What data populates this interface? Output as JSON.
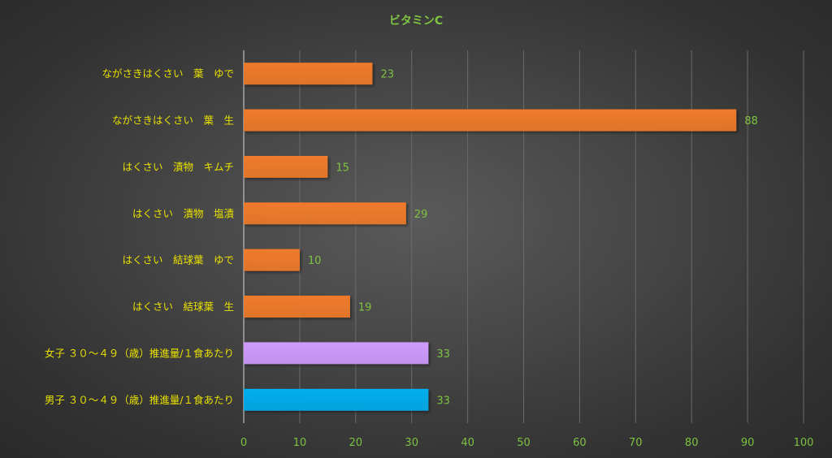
{
  "chart_data": {
    "type": "bar",
    "orientation": "horizontal",
    "title": "ビタミンC",
    "categories": [
      "ながさきはくさい　葉　ゆで",
      "ながさきはくさい　葉　生",
      "はくさい　漬物　キムチ",
      "はくさい　漬物　塩漬",
      "はくさい　結球葉　ゆで",
      "はくさい　結球葉　生",
      "女子 ３０～４９（歳）推進量/１食あたり",
      "男子 ３０～４９（歳）推進量/１食あたり"
    ],
    "values": [
      23,
      88,
      15,
      29,
      10,
      19,
      33,
      33
    ],
    "colors": [
      "#f07b2a",
      "#f07b2a",
      "#f07b2a",
      "#f07b2a",
      "#f07b2a",
      "#f07b2a",
      "#cf9bff",
      "#00aeef"
    ],
    "xlim": [
      0,
      100
    ],
    "xticks": [
      0,
      10,
      20,
      30,
      40,
      50,
      60,
      70,
      80,
      90,
      100
    ],
    "grid": true,
    "legend": "none"
  }
}
